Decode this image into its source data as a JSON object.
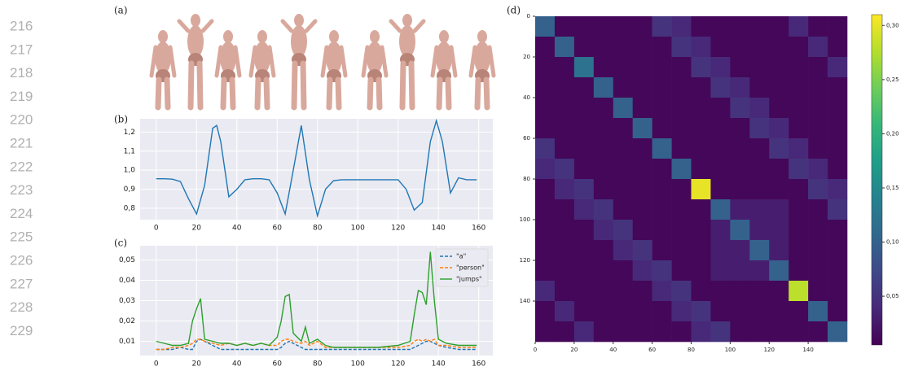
{
  "line_numbers": [
    "216",
    "217",
    "218",
    "219",
    "220",
    "221",
    "222",
    "223",
    "224",
    "225",
    "226",
    "227",
    "228",
    "229"
  ],
  "panel_labels": [
    "(a)",
    "(b)",
    "(c)",
    "(d)"
  ],
  "chart_data": [
    {
      "type": "line",
      "x": [
        0,
        4,
        8,
        12,
        16,
        20,
        24,
        28,
        30,
        32,
        36,
        40,
        44,
        48,
        52,
        56,
        60,
        64,
        68,
        72,
        76,
        80,
        84,
        88,
        92,
        100,
        110,
        120,
        124,
        128,
        132,
        136,
        139,
        142,
        146,
        150,
        154,
        159
      ],
      "series": [
        {
          "color": "#1f77b4",
          "dash": "solid",
          "values": [
            0.955,
            0.955,
            0.953,
            0.94,
            0.85,
            0.77,
            0.92,
            1.22,
            1.235,
            1.15,
            0.86,
            0.9,
            0.95,
            0.955,
            0.955,
            0.95,
            0.88,
            0.77,
            1.0,
            1.235,
            0.95,
            0.76,
            0.9,
            0.945,
            0.95,
            0.95,
            0.95,
            0.95,
            0.9,
            0.79,
            0.83,
            1.15,
            1.26,
            1.15,
            0.88,
            0.96,
            0.95,
            0.95
          ]
        }
      ],
      "xlim": [
        -8,
        167
      ],
      "xticks": [
        0,
        20,
        40,
        60,
        80,
        100,
        120,
        140,
        160
      ],
      "ylim": [
        0.74,
        1.27
      ],
      "yticks": [
        {
          "value": 0.8,
          "label": "0,8"
        },
        {
          "value": 0.9,
          "label": "0,9"
        },
        {
          "value": 1.0,
          "label": "1,0"
        },
        {
          "value": 1.1,
          "label": "1,1"
        },
        {
          "value": 1.2,
          "label": "1,2"
        }
      ],
      "grid": true
    },
    {
      "type": "line",
      "x": [
        0,
        4,
        8,
        12,
        16,
        18,
        20,
        22,
        24,
        28,
        32,
        36,
        40,
        44,
        48,
        52,
        56,
        60,
        62,
        64,
        66,
        68,
        72,
        74,
        76,
        80,
        84,
        88,
        92,
        100,
        110,
        120,
        126,
        128,
        130,
        132,
        134,
        136,
        138,
        140,
        144,
        150,
        155,
        159
      ],
      "series": [
        {
          "name": "\"a\"",
          "color": "#1f77b4",
          "dash": "dashed",
          "values": [
            0.006,
            0.006,
            0.006,
            0.007,
            0.006,
            0.006,
            0.01,
            0.011,
            0.01,
            0.008,
            0.006,
            0.006,
            0.006,
            0.006,
            0.006,
            0.006,
            0.006,
            0.006,
            0.007,
            0.009,
            0.01,
            0.009,
            0.007,
            0.006,
            0.006,
            0.006,
            0.006,
            0.006,
            0.006,
            0.006,
            0.006,
            0.006,
            0.006,
            0.007,
            0.008,
            0.009,
            0.01,
            0.01,
            0.009,
            0.008,
            0.007,
            0.006,
            0.006,
            0.006
          ]
        },
        {
          "name": "\"person\"",
          "color": "#ff7f0e",
          "dash": "dashed",
          "values": [
            0.006,
            0.006,
            0.007,
            0.007,
            0.008,
            0.009,
            0.011,
            0.011,
            0.01,
            0.009,
            0.008,
            0.009,
            0.008,
            0.009,
            0.008,
            0.009,
            0.008,
            0.008,
            0.01,
            0.011,
            0.011,
            0.01,
            0.009,
            0.01,
            0.008,
            0.01,
            0.007,
            0.007,
            0.007,
            0.007,
            0.007,
            0.007,
            0.008,
            0.01,
            0.011,
            0.01,
            0.011,
            0.01,
            0.011,
            0.008,
            0.008,
            0.007,
            0.007,
            0.007
          ]
        },
        {
          "name": "\"jumps\"",
          "color": "#2ca02c",
          "dash": "solid",
          "values": [
            0.01,
            0.009,
            0.008,
            0.008,
            0.009,
            0.02,
            0.026,
            0.031,
            0.011,
            0.01,
            0.009,
            0.009,
            0.008,
            0.009,
            0.008,
            0.009,
            0.008,
            0.012,
            0.02,
            0.032,
            0.033,
            0.014,
            0.01,
            0.017,
            0.009,
            0.011,
            0.008,
            0.007,
            0.007,
            0.007,
            0.007,
            0.008,
            0.01,
            0.023,
            0.035,
            0.034,
            0.028,
            0.054,
            0.03,
            0.011,
            0.009,
            0.008,
            0.008,
            0.008
          ]
        }
      ],
      "xlim": [
        -8,
        167
      ],
      "xticks": [
        0,
        20,
        40,
        60,
        80,
        100,
        120,
        140,
        160
      ],
      "ylim": [
        0.003,
        0.057
      ],
      "yticks": [
        {
          "value": 0.01,
          "label": "0,01"
        },
        {
          "value": 0.02,
          "label": "0,02"
        },
        {
          "value": 0.03,
          "label": "0,03"
        },
        {
          "value": 0.04,
          "label": "0,04"
        },
        {
          "value": 0.05,
          "label": "0,05"
        }
      ],
      "grid": true,
      "legend": "upper-right"
    },
    {
      "type": "heatmap",
      "colormap": "viridis",
      "xlim": [
        0,
        160
      ],
      "ylim": [
        0,
        160
      ],
      "xticks": [
        0,
        20,
        40,
        60,
        80,
        100,
        120,
        140
      ],
      "yticks": [
        0,
        20,
        40,
        60,
        80,
        100,
        120,
        140
      ],
      "zlim": [
        0.005,
        0.31
      ],
      "colorbar_ticks": [
        {
          "value": 0.05,
          "label": "0,05"
        },
        {
          "value": 0.1,
          "label": "0,10"
        },
        {
          "value": 0.15,
          "label": "0,15"
        },
        {
          "value": 0.2,
          "label": "0,20"
        },
        {
          "value": 0.25,
          "label": "0,25"
        },
        {
          "value": 0.3,
          "label": "0,30"
        }
      ],
      "z": [
        [
          0.1,
          0.01,
          0.01,
          0.01,
          0.01,
          0.01,
          0.05,
          0.04,
          0.01,
          0.01,
          0.01,
          0.01,
          0.01,
          0.04,
          0.01,
          0.01
        ],
        [
          0.01,
          0.1,
          0.01,
          0.01,
          0.01,
          0.01,
          0.01,
          0.05,
          0.04,
          0.01,
          0.01,
          0.01,
          0.01,
          0.01,
          0.04,
          0.01
        ],
        [
          0.01,
          0.01,
          0.12,
          0.01,
          0.01,
          0.01,
          0.01,
          0.01,
          0.05,
          0.04,
          0.01,
          0.01,
          0.01,
          0.01,
          0.01,
          0.04
        ],
        [
          0.01,
          0.01,
          0.01,
          0.1,
          0.01,
          0.01,
          0.01,
          0.01,
          0.01,
          0.05,
          0.04,
          0.01,
          0.01,
          0.01,
          0.01,
          0.01
        ],
        [
          0.01,
          0.01,
          0.01,
          0.01,
          0.1,
          0.01,
          0.01,
          0.01,
          0.01,
          0.01,
          0.05,
          0.04,
          0.01,
          0.01,
          0.01,
          0.01
        ],
        [
          0.01,
          0.01,
          0.01,
          0.01,
          0.01,
          0.1,
          0.01,
          0.01,
          0.01,
          0.01,
          0.01,
          0.05,
          0.04,
          0.01,
          0.01,
          0.01
        ],
        [
          0.05,
          0.01,
          0.01,
          0.01,
          0.01,
          0.01,
          0.1,
          0.01,
          0.01,
          0.01,
          0.01,
          0.01,
          0.05,
          0.04,
          0.01,
          0.01
        ],
        [
          0.04,
          0.05,
          0.01,
          0.01,
          0.01,
          0.01,
          0.01,
          0.1,
          0.01,
          0.01,
          0.01,
          0.01,
          0.01,
          0.05,
          0.04,
          0.01
        ],
        [
          0.01,
          0.04,
          0.05,
          0.01,
          0.01,
          0.01,
          0.01,
          0.01,
          0.3,
          0.01,
          0.01,
          0.01,
          0.01,
          0.01,
          0.05,
          0.04
        ],
        [
          0.01,
          0.01,
          0.04,
          0.05,
          0.01,
          0.01,
          0.01,
          0.01,
          0.01,
          0.1,
          0.03,
          0.03,
          0.03,
          0.01,
          0.01,
          0.05
        ],
        [
          0.01,
          0.01,
          0.01,
          0.04,
          0.05,
          0.01,
          0.01,
          0.01,
          0.01,
          0.03,
          0.1,
          0.03,
          0.03,
          0.01,
          0.01,
          0.01
        ],
        [
          0.01,
          0.01,
          0.01,
          0.01,
          0.04,
          0.05,
          0.01,
          0.01,
          0.01,
          0.03,
          0.03,
          0.1,
          0.03,
          0.01,
          0.01,
          0.01
        ],
        [
          0.01,
          0.01,
          0.01,
          0.01,
          0.01,
          0.04,
          0.05,
          0.01,
          0.01,
          0.03,
          0.03,
          0.03,
          0.1,
          0.01,
          0.01,
          0.01
        ],
        [
          0.04,
          0.01,
          0.01,
          0.01,
          0.01,
          0.01,
          0.04,
          0.05,
          0.01,
          0.01,
          0.01,
          0.01,
          0.01,
          0.28,
          0.01,
          0.01
        ],
        [
          0.01,
          0.04,
          0.01,
          0.01,
          0.01,
          0.01,
          0.01,
          0.04,
          0.05,
          0.01,
          0.01,
          0.01,
          0.01,
          0.01,
          0.1,
          0.01
        ],
        [
          0.01,
          0.01,
          0.04,
          0.01,
          0.01,
          0.01,
          0.01,
          0.01,
          0.04,
          0.05,
          0.01,
          0.01,
          0.01,
          0.01,
          0.01,
          0.1
        ]
      ]
    }
  ]
}
